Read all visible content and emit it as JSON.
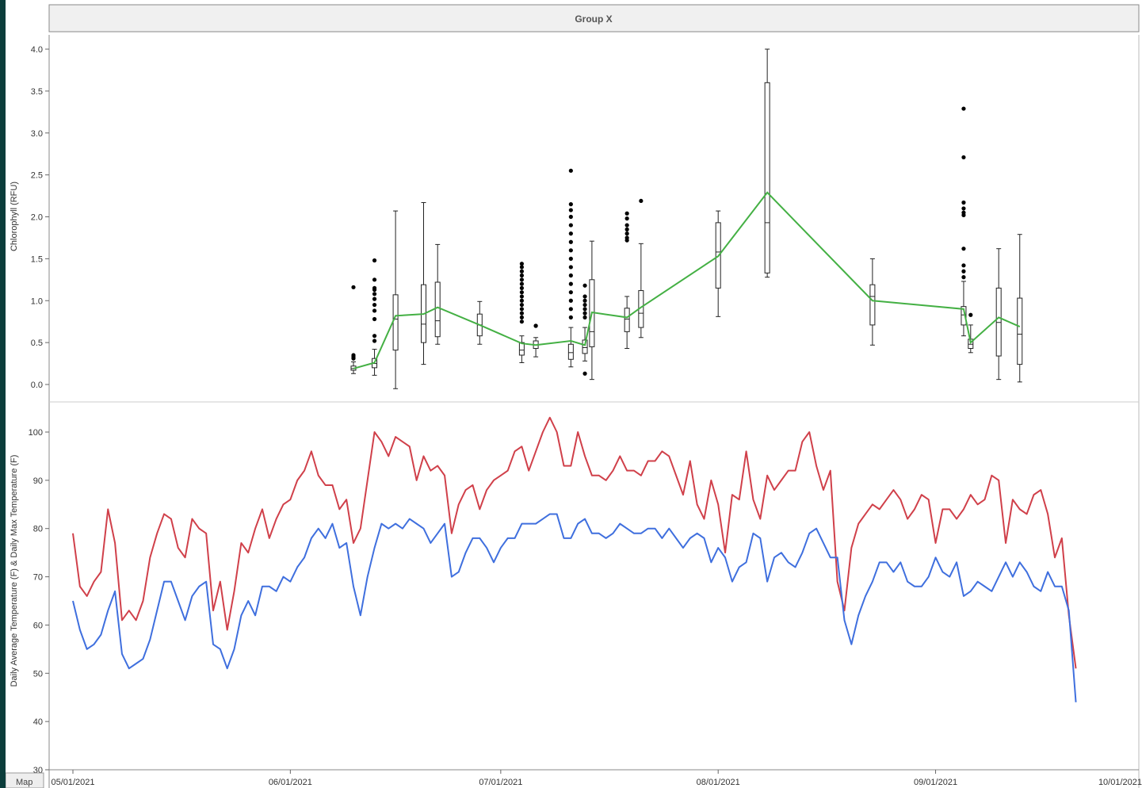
{
  "group_header": {
    "label": "Group X"
  },
  "map_tab": {
    "label": "Map"
  },
  "chart_data": [
    {
      "type": "box",
      "ylabel": "Chlorophyll (RFU)",
      "ylim": [
        0,
        4.0
      ],
      "yticks": [
        "0.0",
        "0.5",
        "1.0",
        "1.5",
        "2.0",
        "2.5",
        "3.0",
        "3.5",
        "4.0"
      ],
      "line_color": "#44b044",
      "boxes": [
        {
          "x": "2021-06-10",
          "min": 0.13,
          "q1": 0.17,
          "median": 0.19,
          "q3": 0.22,
          "max": 0.27,
          "mean": 0.19,
          "outliers": [
            1.16,
            0.35,
            0.33,
            0.31
          ]
        },
        {
          "x": "2021-06-13",
          "min": 0.11,
          "q1": 0.2,
          "median": 0.25,
          "q3": 0.31,
          "max": 0.42,
          "mean": 0.26,
          "outliers": [
            1.48,
            1.25,
            1.15,
            1.13,
            1.08,
            1.02,
            0.95,
            0.88,
            0.78,
            0.58,
            0.52
          ]
        },
        {
          "x": "2021-06-16",
          "min": -0.05,
          "q1": 0.41,
          "median": 0.78,
          "q3": 1.07,
          "max": 2.07,
          "mean": 0.82,
          "outliers": []
        },
        {
          "x": "2021-06-20",
          "min": 0.24,
          "q1": 0.5,
          "median": 0.72,
          "q3": 1.19,
          "max": 2.17,
          "mean": 0.84,
          "outliers": []
        },
        {
          "x": "2021-06-22",
          "min": 0.48,
          "q1": 0.57,
          "median": 0.76,
          "q3": 1.22,
          "max": 1.67,
          "mean": 0.92,
          "outliers": []
        },
        {
          "x": "2021-06-28",
          "min": 0.48,
          "q1": 0.58,
          "median": 0.71,
          "q3": 0.84,
          "max": 0.99,
          "mean": 0.71,
          "outliers": []
        },
        {
          "x": "2021-07-04",
          "min": 0.26,
          "q1": 0.35,
          "median": 0.41,
          "q3": 0.5,
          "max": 0.58,
          "mean": 0.49,
          "outliers": [
            1.44,
            1.4,
            1.35,
            1.3,
            1.25,
            1.2,
            1.15,
            1.1,
            1.05,
            1.0,
            0.95,
            0.9,
            0.85,
            0.8,
            0.75
          ]
        },
        {
          "x": "2021-07-06",
          "min": 0.33,
          "q1": 0.43,
          "median": 0.47,
          "q3": 0.52,
          "max": 0.56,
          "mean": 0.47,
          "outliers": [
            0.7,
            0.7
          ]
        },
        {
          "x": "2021-07-11",
          "min": 0.21,
          "q1": 0.3,
          "median": 0.38,
          "q3": 0.48,
          "max": 0.68,
          "mean": 0.52,
          "outliers": [
            2.55,
            2.15,
            2.08,
            2.0,
            1.9,
            1.8,
            1.7,
            1.6,
            1.5,
            1.4,
            1.3,
            1.2,
            1.1,
            1.0,
            0.9,
            0.8
          ]
        },
        {
          "x": "2021-07-13",
          "min": 0.28,
          "q1": 0.37,
          "median": 0.44,
          "q3": 0.53,
          "max": 0.68,
          "mean": 0.47,
          "outliers": [
            1.18,
            1.05,
            1.0,
            0.95,
            0.9,
            0.85,
            0.8,
            0.13
          ]
        },
        {
          "x": "2021-07-14",
          "min": 0.06,
          "q1": 0.45,
          "median": 0.63,
          "q3": 1.25,
          "max": 1.71,
          "mean": 0.86,
          "outliers": []
        },
        {
          "x": "2021-07-19",
          "min": 0.43,
          "q1": 0.63,
          "median": 0.78,
          "q3": 0.91,
          "max": 1.05,
          "mean": 0.8,
          "outliers": [
            2.04,
            1.98,
            1.9,
            1.85,
            1.8,
            1.75,
            1.72
          ]
        },
        {
          "x": "2021-07-21",
          "min": 0.56,
          "q1": 0.68,
          "median": 0.85,
          "q3": 1.12,
          "max": 1.68,
          "mean": 0.92,
          "outliers": [
            2.19
          ]
        },
        {
          "x": "2021-08-01",
          "min": 0.81,
          "q1": 1.15,
          "median": 1.58,
          "q3": 1.93,
          "max": 2.07,
          "mean": 1.53,
          "outliers": []
        },
        {
          "x": "2021-08-08",
          "min": 1.28,
          "q1": 1.33,
          "median": 1.93,
          "q3": 3.6,
          "max": 4.0,
          "mean": 2.29,
          "outliers": []
        },
        {
          "x": "2021-08-23",
          "min": 0.47,
          "q1": 0.71,
          "median": 1.05,
          "q3": 1.19,
          "max": 1.5,
          "mean": 1.0,
          "outliers": []
        },
        {
          "x": "2021-09-05",
          "min": 0.58,
          "q1": 0.71,
          "median": 0.83,
          "q3": 0.93,
          "max": 1.23,
          "mean": 0.9,
          "outliers": [
            3.29,
            2.71,
            2.17,
            2.1,
            2.05,
            2.02,
            1.62,
            1.42,
            1.35,
            1.28
          ]
        },
        {
          "x": "2021-09-06",
          "min": 0.38,
          "q1": 0.43,
          "median": 0.48,
          "q3": 0.54,
          "max": 0.71,
          "mean": 0.5,
          "outliers": [
            0.83
          ]
        },
        {
          "x": "2021-09-10",
          "min": 0.06,
          "q1": 0.34,
          "median": 0.74,
          "q3": 1.15,
          "max": 1.62,
          "mean": 0.8,
          "outliers": []
        },
        {
          "x": "2021-09-13",
          "min": 0.03,
          "q1": 0.24,
          "median": 0.6,
          "q3": 1.03,
          "max": 1.79,
          "mean": 0.69,
          "outliers": []
        }
      ]
    },
    {
      "type": "line",
      "ylabel": "Daily Average Temperature (F) & Daily Max Temperature (F)",
      "ylim": [
        30,
        100
      ],
      "yticks": [
        "30",
        "40",
        "50",
        "60",
        "70",
        "80",
        "90",
        "100"
      ],
      "xticks": [
        "05/01/2021",
        "06/01/2021",
        "07/01/2021",
        "08/01/2021",
        "09/01/2021",
        "10/01/2021"
      ],
      "x_start": "2021-05-01",
      "series": [
        {
          "color": "#d0404a",
          "values": [
            79,
            68,
            66,
            69,
            71,
            84,
            77,
            61,
            63,
            61,
            65,
            74,
            79,
            83,
            82,
            76,
            74,
            82,
            80,
            79,
            63,
            69,
            59,
            67,
            77,
            75,
            80,
            84,
            78,
            82,
            85,
            86,
            90,
            92,
            96,
            91,
            89,
            89,
            84,
            86,
            77,
            80,
            90,
            100,
            98,
            95,
            99,
            98,
            97,
            90,
            95,
            92,
            93,
            91,
            79,
            85,
            88,
            89,
            84,
            88,
            90,
            91,
            92,
            96,
            97,
            92,
            96,
            100,
            103,
            100,
            93,
            93,
            100,
            95,
            91,
            91,
            90,
            92,
            95,
            92,
            92,
            91,
            94,
            94,
            96,
            95,
            91,
            87,
            94,
            85,
            82,
            90,
            85,
            75,
            87,
            86,
            96,
            86,
            82,
            91,
            88,
            90,
            92,
            92,
            98,
            100,
            93,
            88,
            92,
            69,
            63,
            76,
            81,
            83,
            85,
            84,
            86,
            88,
            86,
            82,
            84,
            87,
            86,
            77,
            84,
            84,
            82,
            84,
            87,
            85,
            86,
            91,
            90,
            77,
            86,
            84,
            83,
            87,
            88,
            83,
            74,
            78,
            62,
            51
          ]
        },
        {
          "color": "#3f6fde",
          "values": [
            65,
            59,
            55,
            56,
            58,
            63,
            67,
            54,
            51,
            52,
            53,
            57,
            63,
            69,
            69,
            65,
            61,
            66,
            68,
            69,
            56,
            55,
            51,
            55,
            62,
            65,
            62,
            68,
            68,
            67,
            70,
            69,
            72,
            74,
            78,
            80,
            78,
            81,
            76,
            77,
            68,
            62,
            70,
            76,
            81,
            80,
            81,
            80,
            82,
            81,
            80,
            77,
            79,
            81,
            70,
            71,
            75,
            78,
            78,
            76,
            73,
            76,
            78,
            78,
            81,
            81,
            81,
            82,
            83,
            83,
            78,
            78,
            81,
            82,
            79,
            79,
            78,
            79,
            81,
            80,
            79,
            79,
            80,
            80,
            78,
            80,
            78,
            76,
            78,
            79,
            78,
            73,
            76,
            74,
            69,
            72,
            73,
            79,
            78,
            69,
            74,
            75,
            73,
            72,
            75,
            79,
            80,
            77,
            74,
            74,
            61,
            56,
            62,
            66,
            69,
            73,
            73,
            71,
            73,
            69,
            68,
            68,
            70,
            74,
            71,
            70,
            73,
            66,
            67,
            69,
            68,
            67,
            70,
            73,
            70,
            73,
            71,
            68,
            67,
            71,
            68,
            68,
            63,
            44
          ]
        }
      ]
    }
  ]
}
